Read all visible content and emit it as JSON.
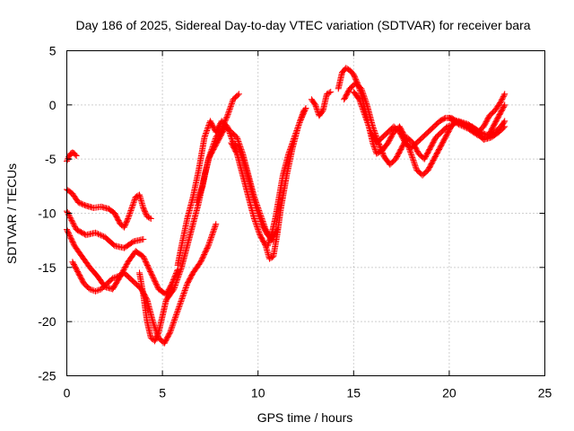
{
  "chart_data": {
    "type": "scatter",
    "title": "Day 186 of 2025, Sidereal Day-to-day VTEC variation (SDTVAR) for receiver bara",
    "xlabel": "GPS time / hours",
    "ylabel": "SDTVAR / TECUs",
    "xlim": [
      0,
      25
    ],
    "ylim": [
      -25,
      5
    ],
    "xticks": [
      0,
      5,
      10,
      15,
      20,
      25
    ],
    "yticks": [
      -25,
      -20,
      -15,
      -10,
      -5,
      0,
      5
    ],
    "grid": true,
    "marker": "plus",
    "color": "#ff0000",
    "series": [
      {
        "x": [
          0,
          0.1,
          0.2,
          0.3,
          0.4,
          0.5
        ],
        "y": [
          -5.2,
          -4.8,
          -4.5,
          -4.4,
          -4.5,
          -4.7
        ]
      },
      {
        "x": [
          0,
          0.3,
          0.6,
          1.0,
          1.4,
          1.8,
          2.2,
          2.5,
          2.8,
          3.0,
          3.2,
          3.4,
          3.6,
          3.8,
          4.0,
          4.2,
          4.4
        ],
        "y": [
          -7.8,
          -8.2,
          -9.0,
          -9.3,
          -9.5,
          -9.4,
          -9.6,
          -10.0,
          -11.0,
          -11.3,
          -10.5,
          -9.5,
          -8.5,
          -8.3,
          -9.5,
          -10.3,
          -10.5
        ]
      },
      {
        "x": [
          0,
          0.5,
          1.0,
          1.5,
          2.0,
          2.5,
          3.0,
          3.5,
          4.0
        ],
        "y": [
          -9.8,
          -11.5,
          -12.0,
          -11.8,
          -12.2,
          -13.0,
          -13.2,
          -12.6,
          -12.4
        ]
      },
      {
        "x": [
          0,
          0.4,
          0.8,
          1.2,
          1.6,
          2.0,
          2.4,
          2.8,
          3.2,
          3.6,
          4.0,
          4.4,
          4.8,
          5.2,
          5.5,
          5.8
        ],
        "y": [
          -11.5,
          -13.0,
          -14.0,
          -15.0,
          -15.8,
          -16.8,
          -17.0,
          -15.8,
          -14.5,
          -13.5,
          -14.0,
          -15.5,
          -17.0,
          -17.5,
          -16.5,
          -15.2
        ]
      },
      {
        "x": [
          0.3,
          0.6,
          0.9,
          1.2,
          1.5,
          1.8,
          2.1,
          2.4,
          2.7,
          3.0,
          3.3,
          3.6,
          3.9,
          4.2,
          4.5,
          4.8,
          5.1,
          5.4,
          5.7,
          6.0,
          6.3,
          6.6,
          7.0,
          7.4,
          7.8
        ],
        "y": [
          -14.5,
          -15.5,
          -16.5,
          -17.0,
          -17.2,
          -17.0,
          -16.5,
          -16.0,
          -15.8,
          -15.5,
          -16.0,
          -16.5,
          -17.0,
          -18.0,
          -20.0,
          -21.5,
          -22.0,
          -21.0,
          -19.5,
          -18.0,
          -16.5,
          -15.5,
          -14.5,
          -13.0,
          -11.0
        ]
      },
      {
        "x": [
          3.8,
          4.0,
          4.2,
          4.4,
          4.6,
          4.8,
          5.0,
          5.2,
          5.4,
          5.6,
          5.8,
          6.0,
          6.3,
          6.6,
          6.9,
          7.2,
          7.5,
          7.8,
          8.1,
          8.4,
          8.7,
          9.0
        ],
        "y": [
          -15.5,
          -17.5,
          -20.0,
          -21.5,
          -21.8,
          -21.0,
          -19.5,
          -18.0,
          -17.5,
          -17.0,
          -16.0,
          -15.0,
          -13.0,
          -11.0,
          -9.0,
          -6.5,
          -4.5,
          -3.0,
          -2.2,
          -1.0,
          0.5,
          1.0
        ]
      },
      {
        "x": [
          5.8,
          6.0,
          6.3,
          6.6,
          6.9,
          7.2,
          7.5,
          7.8,
          8.1,
          8.4,
          8.7,
          9.0,
          9.3,
          9.6,
          9.9,
          10.2,
          10.5,
          10.8
        ],
        "y": [
          -14.8,
          -13.0,
          -10.5,
          -8.5,
          -6.0,
          -3.0,
          -1.5,
          -2.5,
          -1.5,
          -2.0,
          -3.5,
          -4.0,
          -5.5,
          -7.5,
          -9.5,
          -11.0,
          -12.0,
          -12.5
        ]
      },
      {
        "x": [
          6.8,
          7.1,
          7.4,
          7.7,
          8.0,
          8.3,
          8.6,
          8.9,
          9.2,
          9.5,
          9.8,
          10.1,
          10.4,
          10.7,
          11.0
        ],
        "y": [
          -9.0,
          -7.5,
          -5.0,
          -4.0,
          -3.0,
          -2.0,
          -2.5,
          -3.0,
          -4.5,
          -6.5,
          -8.5,
          -10.0,
          -11.5,
          -12.5,
          -11.5
        ]
      },
      {
        "x": [
          8.6,
          8.9,
          9.2,
          9.5,
          9.8,
          10.1,
          10.4,
          10.6,
          10.8,
          11.0,
          11.2,
          11.5,
          11.8,
          12.1,
          12.4
        ],
        "y": [
          -3.5,
          -4.5,
          -6.5,
          -8.5,
          -10.5,
          -12.0,
          -13.0,
          -14.2,
          -14.0,
          -12.0,
          -9.5,
          -6.5,
          -4.0,
          -2.0,
          -0.5
        ]
      },
      {
        "x": [
          10.5,
          10.7,
          10.9,
          11.1,
          11.3,
          11.6,
          11.9,
          12.2,
          12.5
        ],
        "y": [
          -13.0,
          -12.0,
          -10.5,
          -8.5,
          -6.5,
          -4.5,
          -3.0,
          -1.5,
          -0.3
        ]
      },
      {
        "x": [
          12.8,
          13.0,
          13.2,
          13.4,
          13.6,
          13.8
        ],
        "y": [
          0.5,
          0.0,
          -1.0,
          -0.5,
          1.0,
          1.2
        ]
      },
      {
        "x": [
          14.2,
          14.4,
          14.6,
          14.8,
          15.0,
          15.2,
          15.4,
          15.6,
          15.8,
          16.0,
          16.2,
          16.5,
          16.8,
          17.1,
          17.4,
          17.7,
          18.0,
          18.3,
          18.6,
          18.9,
          19.2,
          19.5,
          19.8,
          20.1,
          20.4
        ],
        "y": [
          1.5,
          3.0,
          3.4,
          3.2,
          2.8,
          2.0,
          1.0,
          -0.5,
          -2.0,
          -3.5,
          -4.5,
          -4.2,
          -3.5,
          -2.5,
          -2.0,
          -3.0,
          -4.5,
          -6.0,
          -6.5,
          -6.0,
          -5.0,
          -4.0,
          -3.0,
          -2.0,
          -1.5
        ]
      },
      {
        "x": [
          14.5,
          14.8,
          15.1,
          15.4,
          15.7,
          16.0,
          16.3,
          16.6,
          16.9,
          17.2,
          17.5,
          17.8,
          18.1,
          18.4,
          18.7,
          19.0,
          19.3,
          19.6,
          19.9,
          20.2
        ],
        "y": [
          0.5,
          1.5,
          2.0,
          1.5,
          0.0,
          -2.0,
          -3.5,
          -4.8,
          -5.5,
          -5.0,
          -4.0,
          -3.0,
          -3.5,
          -4.5,
          -5.0,
          -4.0,
          -3.0,
          -2.5,
          -2.0,
          -1.8
        ]
      },
      {
        "x": [
          15.0,
          15.3,
          15.6,
          15.9,
          16.2,
          16.5,
          16.8,
          17.1,
          17.4,
          17.7,
          18.0,
          18.3,
          18.6,
          18.9,
          19.2,
          19.5,
          19.8,
          20.1,
          20.4
        ],
        "y": [
          1.2,
          0.5,
          -1.0,
          -2.5,
          -3.5,
          -3.0,
          -2.5,
          -2.0,
          -2.5,
          -3.5,
          -4.0,
          -3.5,
          -3.0,
          -2.5,
          -2.0,
          -1.5,
          -1.2,
          -1.2,
          -1.5
        ]
      },
      {
        "x": [
          20.4,
          20.8,
          21.2,
          21.6,
          22.0,
          22.4,
          22.7,
          22.9
        ],
        "y": [
          -1.5,
          -1.8,
          -2.0,
          -2.5,
          -2.8,
          -2.5,
          -2.0,
          -1.5
        ]
      },
      {
        "x": [
          20.0,
          20.5,
          21.0,
          21.5,
          22.0,
          22.3,
          22.6,
          22.9
        ],
        "y": [
          -1.2,
          -1.8,
          -2.2,
          -2.8,
          -3.0,
          -2.0,
          -1.0,
          0.0
        ]
      },
      {
        "x": [
          20.5,
          21.0,
          21.5,
          21.8,
          22.1,
          22.4,
          22.7,
          22.9
        ],
        "y": [
          -1.5,
          -1.8,
          -2.5,
          -2.0,
          -1.0,
          -0.5,
          0.3,
          1.0
        ]
      },
      {
        "x": [
          21.0,
          21.4,
          21.8,
          22.2,
          22.6,
          22.9
        ],
        "y": [
          -2.0,
          -2.5,
          -3.2,
          -3.0,
          -2.5,
          -2.0
        ]
      }
    ]
  }
}
